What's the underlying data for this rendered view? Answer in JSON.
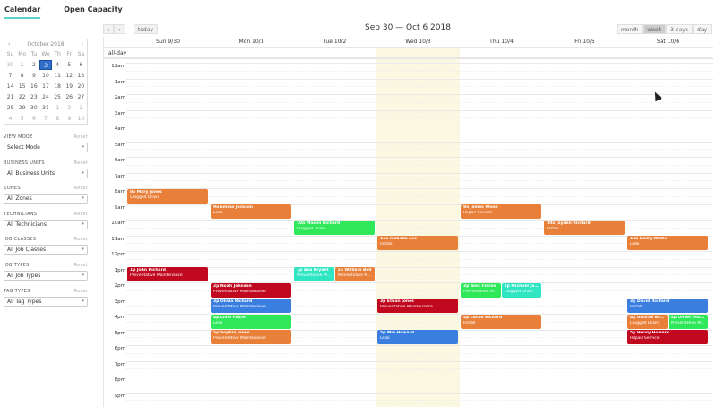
{
  "tabs": [
    {
      "label": "Calendar",
      "active": true
    },
    {
      "label": "Open Capacity",
      "active": false
    }
  ],
  "mini_calendar": {
    "month_label": "October 2018",
    "prev_icon": "‹",
    "next_icon": "›",
    "dow": [
      "Su",
      "Mo",
      "Tu",
      "We",
      "Th",
      "Fr",
      "Sa"
    ],
    "weeks": [
      [
        "30",
        "1",
        "2",
        "3",
        "4",
        "5",
        "6"
      ],
      [
        "7",
        "8",
        "9",
        "10",
        "11",
        "12",
        "13"
      ],
      [
        "14",
        "15",
        "16",
        "17",
        "18",
        "19",
        "20"
      ],
      [
        "21",
        "22",
        "23",
        "24",
        "25",
        "26",
        "27"
      ],
      [
        "28",
        "29",
        "30",
        "31",
        "1",
        "2",
        "3"
      ],
      [
        "4",
        "5",
        "6",
        "7",
        "8",
        "9",
        "10"
      ]
    ],
    "selected": "3"
  },
  "filters": [
    {
      "label": "VIEW MODE",
      "reset": "Reset",
      "value": "Select Mode"
    },
    {
      "label": "BUSINESS UNITS",
      "reset": "Reset",
      "value": "All Business Units"
    },
    {
      "label": "ZONES",
      "reset": "Reset",
      "value": "All Zones"
    },
    {
      "label": "TECHNICIANS",
      "reset": "Reset",
      "value": "All Technicians"
    },
    {
      "label": "JOB CLASSES",
      "reset": "Reset",
      "value": "All Job Classes"
    },
    {
      "label": "JOB TYPES",
      "reset": "Reset",
      "value": "All Job Types"
    },
    {
      "label": "TAG TYPES",
      "reset": "Reset",
      "value": "All Tag Types"
    }
  ],
  "toolbar": {
    "prev": "‹",
    "next": "›",
    "today": "today",
    "title": "Sep 30 — Oct 6 2018",
    "views": [
      "month",
      "week",
      "3 days",
      "day"
    ],
    "active_view": "week"
  },
  "calendar": {
    "all_day_label": "all-day",
    "days": [
      "Sun 9/30",
      "Mon 10/1",
      "Tue 10/2",
      "Wed 10/3",
      "Thu 10/4",
      "Fri 10/5",
      "Sat 10/6"
    ],
    "today_index": 3,
    "hours": [
      "12am",
      "1am",
      "2am",
      "3am",
      "4am",
      "5am",
      "6am",
      "7am",
      "8am",
      "9am",
      "10am",
      "11am",
      "12pm",
      "1pm",
      "2pm",
      "3pm",
      "4pm",
      "5pm",
      "6pm",
      "7pm",
      "8pm",
      "9pm"
    ],
    "colors": {
      "orange": "#e8803a",
      "green": "#2ee85a",
      "red": "#c0081f",
      "blue": "#3a7fe0",
      "cyan": "#2fe6c2"
    },
    "events": [
      {
        "day": 0,
        "hour": 8,
        "title": "8a Mary Jones",
        "desc": "Clogged Drain",
        "color": "orange"
      },
      {
        "day": 0,
        "hour": 13,
        "title": "1p John Richard",
        "desc": "Preventative Maintenance",
        "color": "red"
      },
      {
        "day": 1,
        "hour": 9,
        "title": "9a Emma Jackson",
        "desc": "Leak",
        "color": "orange"
      },
      {
        "day": 1,
        "hour": 14,
        "title": "2p Noah Johnson",
        "desc": "Preventative Maintenance",
        "color": "red"
      },
      {
        "day": 1,
        "hour": 15,
        "title": "3p Olivia Richard",
        "desc": "Preventative Maintenance",
        "color": "blue"
      },
      {
        "day": 1,
        "hour": 16,
        "title": "4p Liam Foster",
        "desc": "Leak",
        "color": "green"
      },
      {
        "day": 1,
        "hour": 17,
        "title": "5p Sophia Jones",
        "desc": "Preventative Maintenance",
        "color": "orange"
      },
      {
        "day": 2,
        "hour": 10,
        "title": "10a Mason Richard",
        "desc": "Clogged Drain",
        "color": "green"
      },
      {
        "day": 2,
        "hour": 13,
        "title": "1p Ava Bryant",
        "desc": "Preventative Maintenance",
        "color": "cyan",
        "slot": 0
      },
      {
        "day": 2,
        "hour": 13,
        "title": "1p William Bell",
        "desc": "Preventative Maintenance",
        "color": "orange",
        "slot": 1
      },
      {
        "day": 3,
        "hour": 11,
        "title": "11a Isabella Lee",
        "desc": "Install",
        "color": "orange"
      },
      {
        "day": 3,
        "hour": 15,
        "title": "3p Ethan Jones",
        "desc": "Preventative Maintenance",
        "color": "red"
      },
      {
        "day": 3,
        "hour": 17,
        "title": "5p Mia Howard",
        "desc": "Leak",
        "color": "blue"
      },
      {
        "day": 4,
        "hour": 9,
        "title": "9a James Wood",
        "desc": "Repair Service",
        "color": "orange"
      },
      {
        "day": 4,
        "hour": 14,
        "title": "2p Alex Flores",
        "desc": "Preventative Maintenance",
        "color": "green",
        "slot": 0
      },
      {
        "day": 4,
        "hour": 14,
        "title": "2p Michael Jones",
        "desc": "Clogged Drain",
        "color": "cyan",
        "slot": 1
      },
      {
        "day": 4,
        "hour": 16,
        "title": "4p Lucas Richard",
        "desc": "Install",
        "color": "orange"
      },
      {
        "day": 5,
        "hour": 10,
        "title": "10a Jayden Richard",
        "desc": "Install",
        "color": "orange"
      },
      {
        "day": 6,
        "hour": 11,
        "title": "11a Emily White",
        "desc": "Leak",
        "color": "orange"
      },
      {
        "day": 6,
        "hour": 15,
        "title": "3p David Richard",
        "desc": "Install",
        "color": "blue"
      },
      {
        "day": 6,
        "hour": 16,
        "title": "4p Gabriel Bryant",
        "desc": "Clogged Drain",
        "color": "orange",
        "slot": 0
      },
      {
        "day": 6,
        "hour": 16,
        "title": "4p Oliver Flores",
        "desc": "Preventative Maintenance",
        "color": "green",
        "slot": 1
      },
      {
        "day": 6,
        "hour": 17,
        "title": "5p Henry Howard",
        "desc": "Repair Service",
        "color": "red"
      }
    ]
  }
}
